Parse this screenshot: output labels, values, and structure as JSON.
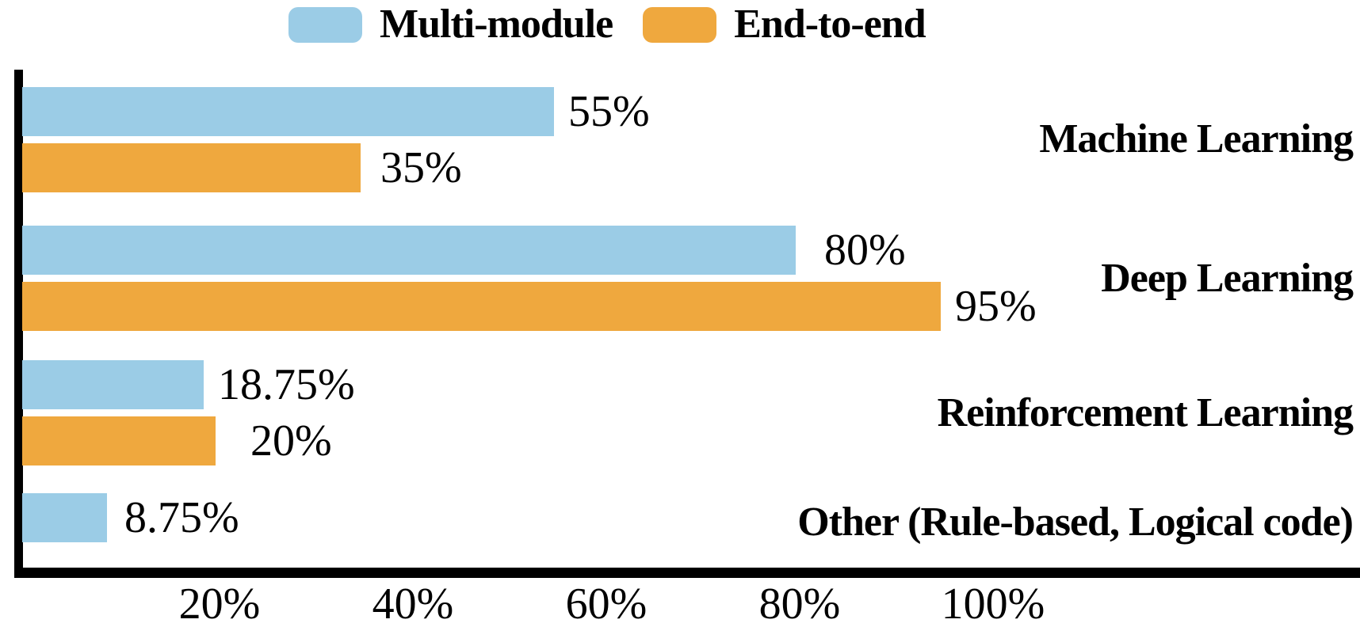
{
  "colors": {
    "multi_module": "#9bcce6",
    "end_to_end": "#efa83e",
    "axis": "#000000",
    "text": "#000000",
    "background": "#ffffff"
  },
  "legend": {
    "items": [
      {
        "label": "Multi-module",
        "color": "#9bcce6"
      },
      {
        "label": "End-to-end",
        "color": "#efa83e"
      }
    ]
  },
  "chart_data": {
    "type": "bar",
    "orientation": "horizontal",
    "title": "",
    "xlabel": "",
    "ylabel": "",
    "categories": [
      "Machine Learning",
      "Deep Learning",
      "Reinforcement Learning",
      "Other (Rule-based, Logical code)"
    ],
    "series": [
      {
        "name": "Multi-module",
        "color": "#9bcce6",
        "values": [
          55,
          80,
          18.75,
          8.75
        ]
      },
      {
        "name": "End-to-end",
        "color": "#efa83e",
        "values": [
          35,
          95,
          20,
          null
        ]
      }
    ],
    "value_labels": [
      [
        "55%",
        "35%"
      ],
      [
        "80%",
        "95%"
      ],
      [
        "18.75%",
        "20%"
      ],
      [
        "8.75%",
        null
      ]
    ],
    "x_ticks": [
      "20%",
      "40%",
      "60%",
      "80%",
      "100%"
    ],
    "x_tick_values": [
      20,
      40,
      60,
      80,
      100
    ],
    "xlim": [
      0,
      100
    ],
    "grid": false,
    "legend_position": "top"
  }
}
